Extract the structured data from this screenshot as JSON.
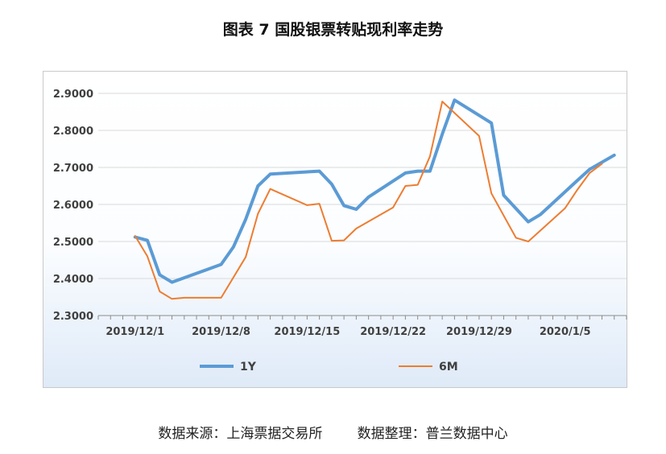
{
  "title": "图表 7  国股银票转贴现利率走势",
  "source_text": "数据来源：上海票据交易所        数据整理：普兰数据中心",
  "chart_data": {
    "type": "line",
    "title": "图表 7  国股银票转贴现利率走势",
    "xlabel": "",
    "ylabel": "",
    "ylim": [
      2.3,
      2.9
    ],
    "yticks": [
      2.3,
      2.4,
      2.5,
      2.6,
      2.7,
      2.8,
      2.9
    ],
    "ytick_labels": [
      "2.3000",
      "2.4000",
      "2.5000",
      "2.6000",
      "2.7000",
      "2.8000",
      "2.9000"
    ],
    "x_start": "2019-11-28",
    "x_end": "2020-01-10",
    "xtick_labels": [
      "2019/12/1",
      "2019/12/8",
      "2019/12/15",
      "2019/12/22",
      "2019/12/29",
      "2020/1/5"
    ],
    "xtick_dates": [
      "2019-12-01",
      "2019-12-08",
      "2019-12-15",
      "2019-12-22",
      "2019-12-29",
      "2020-01-05"
    ],
    "grid": true,
    "legend_position": "bottom",
    "series": [
      {
        "name": "1Y",
        "color": "#5b9bd5",
        "points": [
          [
            "2019-12-01",
            2.512
          ],
          [
            "2019-12-02",
            2.503
          ],
          [
            "2019-12-03",
            2.41
          ],
          [
            "2019-12-04",
            2.39
          ],
          [
            "2019-12-08",
            2.438
          ],
          [
            "2019-12-09",
            2.485
          ],
          [
            "2019-12-10",
            2.56
          ],
          [
            "2019-12-11",
            2.65
          ],
          [
            "2019-12-12",
            2.682
          ],
          [
            "2019-12-16",
            2.69
          ],
          [
            "2019-12-17",
            2.655
          ],
          [
            "2019-12-18",
            2.597
          ],
          [
            "2019-12-19",
            2.587
          ],
          [
            "2019-12-20",
            2.62
          ],
          [
            "2019-12-23",
            2.685
          ],
          [
            "2019-12-24",
            2.69
          ],
          [
            "2019-12-25",
            2.69
          ],
          [
            "2019-12-26",
            2.79
          ],
          [
            "2019-12-27",
            2.882
          ],
          [
            "2019-12-30",
            2.82
          ],
          [
            "2019-12-31",
            2.625
          ],
          [
            "2020-01-02",
            2.553
          ],
          [
            "2020-01-03",
            2.573
          ],
          [
            "2020-01-06",
            2.665
          ],
          [
            "2020-01-07",
            2.695
          ],
          [
            "2020-01-09",
            2.733
          ]
        ]
      },
      {
        "name": "6M",
        "color": "#ed7d31",
        "points": [
          [
            "2019-12-01",
            2.515
          ],
          [
            "2019-12-02",
            2.46
          ],
          [
            "2019-12-03",
            2.365
          ],
          [
            "2019-12-04",
            2.345
          ],
          [
            "2019-12-05",
            2.348
          ],
          [
            "2019-12-08",
            2.348
          ],
          [
            "2019-12-10",
            2.458
          ],
          [
            "2019-12-11",
            2.575
          ],
          [
            "2019-12-12",
            2.642
          ],
          [
            "2019-12-15",
            2.598
          ],
          [
            "2019-12-16",
            2.602
          ],
          [
            "2019-12-17",
            2.502
          ],
          [
            "2019-12-18",
            2.503
          ],
          [
            "2019-12-19",
            2.535
          ],
          [
            "2019-12-22",
            2.592
          ],
          [
            "2019-12-23",
            2.65
          ],
          [
            "2019-12-24",
            2.653
          ],
          [
            "2019-12-25",
            2.73
          ],
          [
            "2019-12-26",
            2.878
          ],
          [
            "2019-12-29",
            2.785
          ],
          [
            "2019-12-30",
            2.63
          ],
          [
            "2020-01-01",
            2.51
          ],
          [
            "2020-01-02",
            2.5
          ],
          [
            "2020-01-05",
            2.59
          ],
          [
            "2020-01-06",
            2.64
          ],
          [
            "2020-01-07",
            2.685
          ],
          [
            "2020-01-08",
            2.71
          ]
        ]
      }
    ]
  }
}
